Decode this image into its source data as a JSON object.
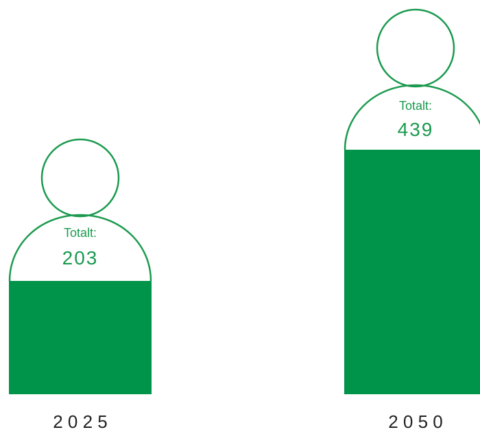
{
  "chart_data": {
    "type": "bar",
    "title": "",
    "xlabel": "",
    "ylabel": "",
    "categories": [
      "2 0 2 5",
      "2 0 5 0"
    ],
    "values": [
      203,
      439
    ],
    "value_prefix": "Totalt:",
    "value_labels": [
      "203",
      "439"
    ],
    "colors": {
      "fill": "#00944a",
      "outline": "#1b9a4f",
      "label": "#1b9a4f",
      "category": "#222222"
    }
  }
}
